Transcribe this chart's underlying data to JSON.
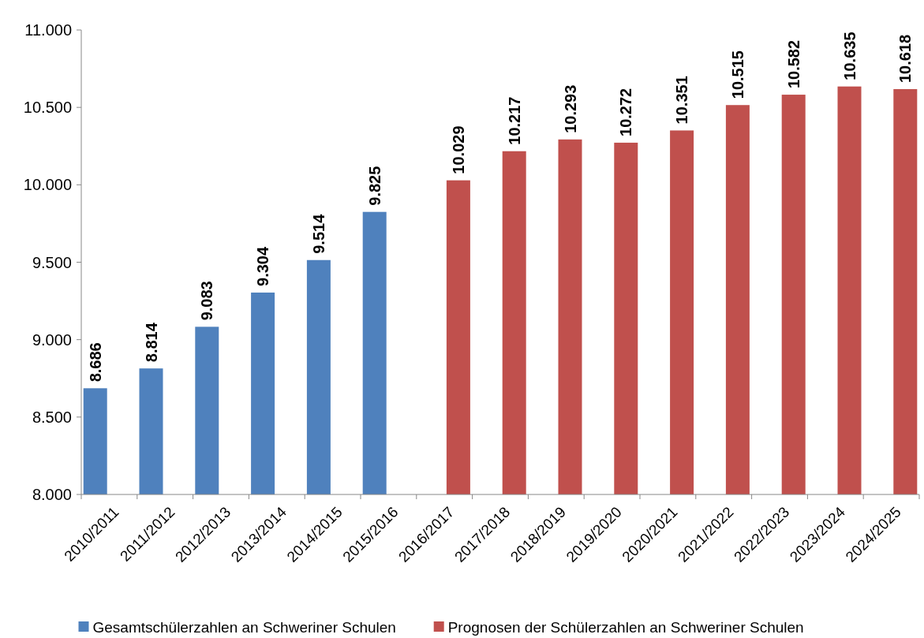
{
  "chart_data": {
    "type": "bar",
    "categories": [
      "2010/2011",
      "2011/2012",
      "2012/2013",
      "2013/2014",
      "2014/2015",
      "2015/2016",
      "2016/2017",
      "2017/2018",
      "2018/2019",
      "2019/2020",
      "2020/2021",
      "2021/2022",
      "2022/2023",
      "2023/2024",
      "2024/2025"
    ],
    "series": [
      {
        "name": "Gesamtschülerzahlen an Schweriner Schulen",
        "color": "#4f81bd",
        "values": [
          8686,
          8814,
          9083,
          9304,
          9514,
          9825,
          null,
          null,
          null,
          null,
          null,
          null,
          null,
          null,
          null
        ],
        "value_labels": [
          "8.686",
          "8.814",
          "9.083",
          "9.304",
          "9.514",
          "9.825",
          null,
          null,
          null,
          null,
          null,
          null,
          null,
          null,
          null
        ]
      },
      {
        "name": "Prognosen der Schülerzahlen an Schweriner Schulen",
        "color": "#c0504d",
        "values": [
          null,
          null,
          null,
          null,
          null,
          null,
          10029,
          10217,
          10293,
          10272,
          10351,
          10515,
          10582,
          10635,
          10618
        ],
        "value_labels": [
          null,
          null,
          null,
          null,
          null,
          null,
          "10.029",
          "10.217",
          "10.293",
          "10.272",
          "10.351",
          "10.515",
          "10.582",
          "10.635",
          "10.618"
        ]
      }
    ],
    "ylim": [
      8000,
      11000
    ],
    "yticks": [
      {
        "value": 8000,
        "label": "8.000"
      },
      {
        "value": 8500,
        "label": "8.500"
      },
      {
        "value": 9000,
        "label": "9.000"
      },
      {
        "value": 9500,
        "label": "9.500"
      },
      {
        "value": 10000,
        "label": "10.000"
      },
      {
        "value": 10500,
        "label": "10.500"
      },
      {
        "value": 11000,
        "label": "11.000"
      }
    ],
    "grid": false,
    "legend": "bottom"
  }
}
